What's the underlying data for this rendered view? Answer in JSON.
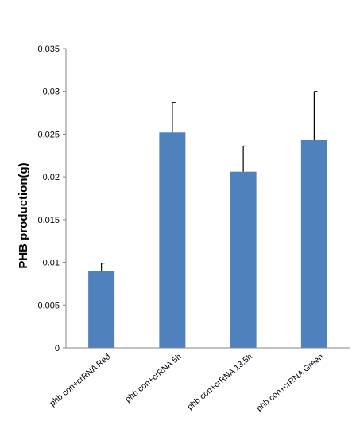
{
  "chart_data": {
    "type": "bar",
    "title": "",
    "xlabel": "",
    "ylabel": "PHB production(g)",
    "ylim": [
      0,
      0.035
    ],
    "yticks": [
      "0",
      "0.005",
      "0.01",
      "0.015",
      "0.02",
      "0.025",
      "0.03",
      "0.035"
    ],
    "categories": [
      "phb con+crRNA Red",
      "phb con+crRNA 5h",
      "phb con+crRNA 13.5h",
      "phb con+crRNA Green"
    ],
    "values": [
      0.009,
      0.0252,
      0.0206,
      0.0243
    ],
    "error_upper": [
      0.0009,
      0.0035,
      0.003,
      0.0057
    ],
    "bar_color": "#4f81bd",
    "grid": false,
    "legend": "none"
  }
}
